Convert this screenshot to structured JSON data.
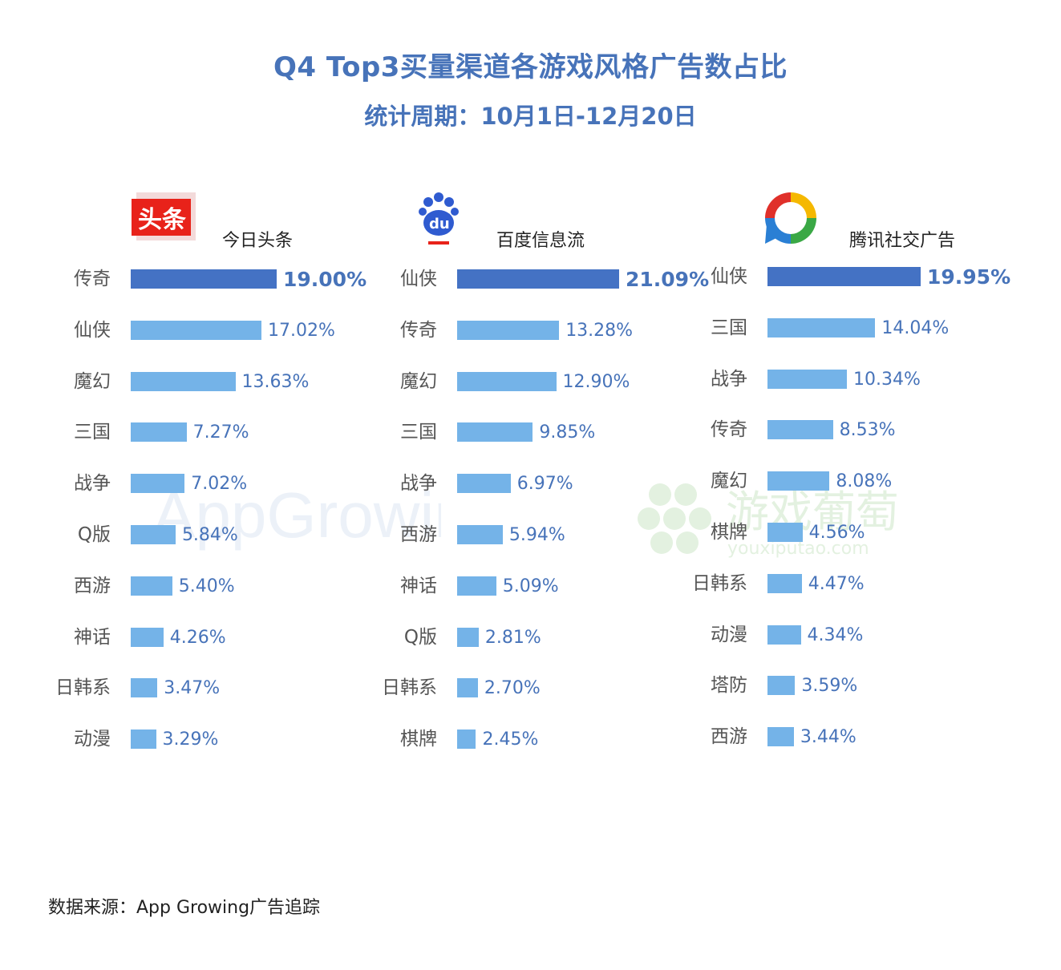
{
  "title": "Q4 Top3买量渠道各游戏风格广告数占比",
  "subtitle": "统计周期：10月1日-12月20日",
  "source": "数据来源：App Growing广告追踪",
  "colors": {
    "title": "#4773b9",
    "bar_top": "#4472c4",
    "bar": "#74b3e8",
    "value_text": "#4773b9"
  },
  "logos": {
    "toutiao_text": "头条",
    "baidu_text": "du",
    "watermark_appgrowing": "AppGrowing",
    "watermark_youxi": "游戏葡萄",
    "watermark_youxi_url": "youxiputao.com"
  },
  "chart_data": [
    {
      "type": "bar",
      "orientation": "horizontal",
      "title": "今日头条",
      "categories": [
        "传奇",
        "仙侠",
        "魔幻",
        "三国",
        "战争",
        "Q版",
        "西游",
        "神话",
        "日韩系",
        "动漫"
      ],
      "values": [
        19.0,
        17.02,
        13.63,
        7.27,
        7.02,
        5.84,
        5.4,
        4.26,
        3.47,
        3.29
      ],
      "labels": [
        "19.00%",
        "17.02%",
        "13.63%",
        "7.27%",
        "7.02%",
        "5.84%",
        "5.40%",
        "4.26%",
        "3.47%",
        "3.29%"
      ]
    },
    {
      "type": "bar",
      "orientation": "horizontal",
      "title": "百度信息流",
      "categories": [
        "仙侠",
        "传奇",
        "魔幻",
        "三国",
        "战争",
        "西游",
        "神话",
        "Q版",
        "日韩系",
        "棋牌"
      ],
      "values": [
        21.09,
        13.28,
        12.9,
        9.85,
        6.97,
        5.94,
        5.09,
        2.81,
        2.7,
        2.45
      ],
      "labels": [
        "21.09%",
        "13.28%",
        "12.90%",
        "9.85%",
        "6.97%",
        "5.94%",
        "5.09%",
        "2.81%",
        "2.70%",
        "2.45%"
      ]
    },
    {
      "type": "bar",
      "orientation": "horizontal",
      "title": "腾讯社交广告",
      "categories": [
        "仙侠",
        "三国",
        "战争",
        "传奇",
        "魔幻",
        "棋牌",
        "日韩系",
        "动漫",
        "塔防",
        "西游"
      ],
      "values": [
        19.95,
        14.04,
        10.34,
        8.53,
        8.08,
        4.56,
        4.47,
        4.34,
        3.59,
        3.44
      ],
      "labels": [
        "19.95%",
        "14.04%",
        "10.34%",
        "8.53%",
        "8.08%",
        "4.56%",
        "4.47%",
        "4.34%",
        "3.59%",
        "3.44%"
      ]
    }
  ]
}
